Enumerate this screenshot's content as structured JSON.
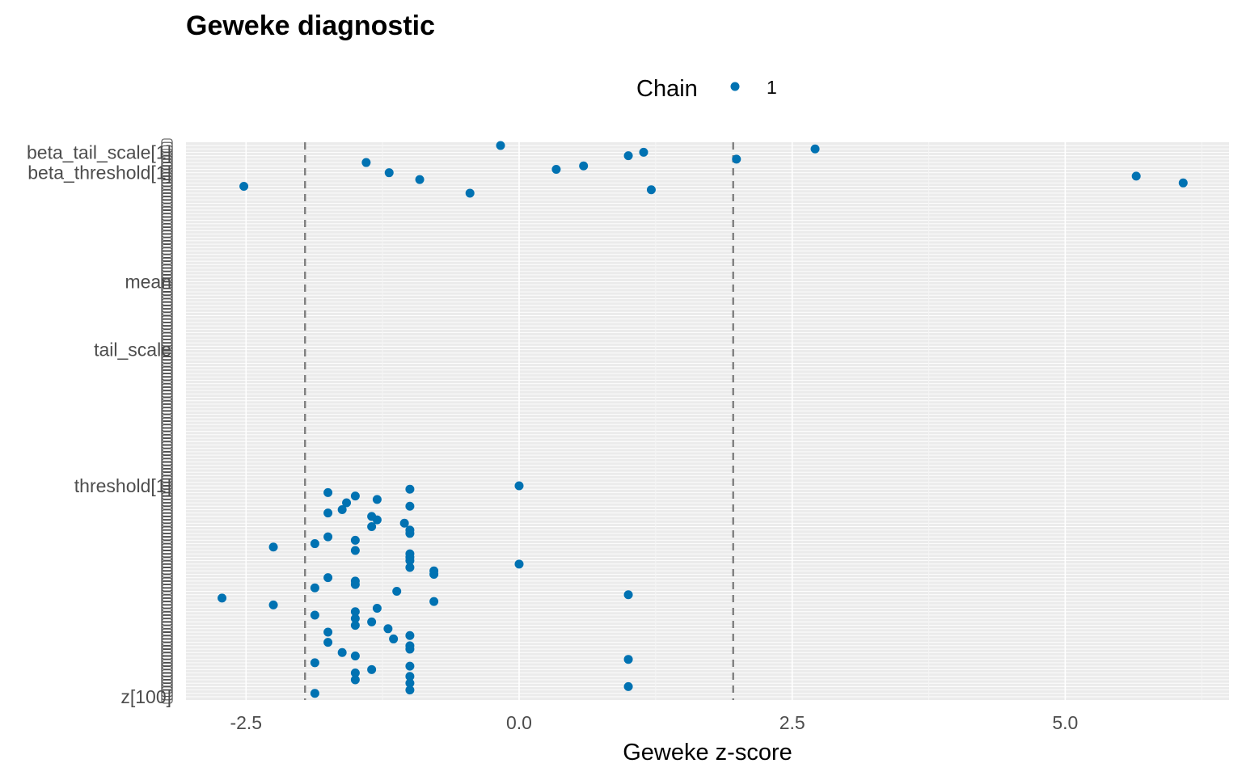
{
  "chart_data": {
    "type": "scatter",
    "title": "Geweke diagnostic",
    "xlabel": "Geweke z-score",
    "ylabel": "",
    "xlim": [
      -3.05,
      6.5
    ],
    "x_ticks": [
      -2.5,
      0.0,
      2.5,
      5.0
    ],
    "x_tick_labels": [
      "-2.5",
      "0.0",
      "2.5",
      "5.0"
    ],
    "reference_lines": [
      -1.96,
      1.96
    ],
    "legend": {
      "title": "Chain",
      "entries": [
        "1"
      ],
      "position": "top"
    },
    "grid": true,
    "color": "#0072B2",
    "y_tick_labels_readable": [
      "beta_tail_scale[1]",
      "beta_threshold[1]",
      "mean",
      "tail_scale",
      "threshold[1]",
      "z[100]"
    ],
    "parameters_count": 130,
    "points": [
      {
        "param": 0,
        "z": -0.17
      },
      {
        "param": 1,
        "z": 2.71
      },
      {
        "param": 2,
        "z": 1.14
      },
      {
        "param": 3,
        "z": 1.0
      },
      {
        "param": 4,
        "z": 1.99
      },
      {
        "param": 5,
        "z": -1.4
      },
      {
        "param": 6,
        "z": 0.59
      },
      {
        "param": 7,
        "z": 0.34
      },
      {
        "param": 8,
        "z": -1.19
      },
      {
        "param": 9,
        "z": 5.65
      },
      {
        "param": 10,
        "z": -0.91
      },
      {
        "param": 11,
        "z": 6.08
      },
      {
        "param": 12,
        "z": -2.52
      },
      {
        "param": 13,
        "z": 1.21
      },
      {
        "param": 14,
        "z": -0.45
      },
      {
        "param": 100,
        "z": 0.0
      },
      {
        "param": 101,
        "z": -1.0
      },
      {
        "param": 102,
        "z": -1.75
      },
      {
        "param": 103,
        "z": -1.5
      },
      {
        "param": 104,
        "z": -1.3
      },
      {
        "param": 105,
        "z": -1.58
      },
      {
        "param": 106,
        "z": -1.0
      },
      {
        "param": 107,
        "z": -1.62
      },
      {
        "param": 108,
        "z": -1.75
      },
      {
        "param": 109,
        "z": -1.35
      },
      {
        "param": 110,
        "z": -1.3
      },
      {
        "param": 111,
        "z": -1.05
      },
      {
        "param": 112,
        "z": -1.35
      },
      {
        "param": 113,
        "z": -1.0
      },
      {
        "param": 114,
        "z": -1.0
      },
      {
        "param": 115,
        "z": -1.75
      },
      {
        "param": 116,
        "z": -1.5
      },
      {
        "param": 117,
        "z": -1.87
      },
      {
        "param": 118,
        "z": -2.25
      },
      {
        "param": 119,
        "z": -1.5
      },
      {
        "param": 120,
        "z": -1.0
      },
      {
        "param": 121,
        "z": -1.0
      },
      {
        "param": 122,
        "z": -1.0
      },
      {
        "param": 123,
        "z": 0.0
      },
      {
        "param": 124,
        "z": -1.0
      },
      {
        "param": 125,
        "z": -0.78
      },
      {
        "param": 126,
        "z": -0.78
      },
      {
        "param": 127,
        "z": -1.75
      },
      {
        "param": 128,
        "z": -1.5
      },
      {
        "param": 129,
        "z": -1.5
      },
      {
        "param": 130,
        "z": -1.87
      },
      {
        "param": 131,
        "z": -1.12
      },
      {
        "param": 132,
        "z": 1.0
      },
      {
        "param": 133,
        "z": -2.72
      },
      {
        "param": 134,
        "z": -0.78
      },
      {
        "param": 135,
        "z": -2.25
      },
      {
        "param": 136,
        "z": -1.3
      },
      {
        "param": 137,
        "z": -1.5
      },
      {
        "param": 138,
        "z": -1.87
      },
      {
        "param": 139,
        "z": -1.5
      },
      {
        "param": 140,
        "z": -1.35
      },
      {
        "param": 141,
        "z": -1.5
      },
      {
        "param": 142,
        "z": -1.2
      },
      {
        "param": 143,
        "z": -1.75
      },
      {
        "param": 144,
        "z": -1.0
      },
      {
        "param": 145,
        "z": -1.15
      },
      {
        "param": 146,
        "z": -1.75
      },
      {
        "param": 147,
        "z": -1.0
      },
      {
        "param": 148,
        "z": -1.0
      },
      {
        "param": 149,
        "z": -1.62
      },
      {
        "param": 150,
        "z": -1.5
      },
      {
        "param": 151,
        "z": 1.0
      },
      {
        "param": 152,
        "z": -1.87
      },
      {
        "param": 153,
        "z": -1.0
      },
      {
        "param": 154,
        "z": -1.35
      },
      {
        "param": 155,
        "z": -1.5
      },
      {
        "param": 156,
        "z": -1.0
      },
      {
        "param": 157,
        "z": -1.5
      },
      {
        "param": 158,
        "z": -1.0
      },
      {
        "param": 159,
        "z": 1.0
      },
      {
        "param": 160,
        "z": -1.0
      },
      {
        "param": 161,
        "z": -1.87
      }
    ]
  }
}
